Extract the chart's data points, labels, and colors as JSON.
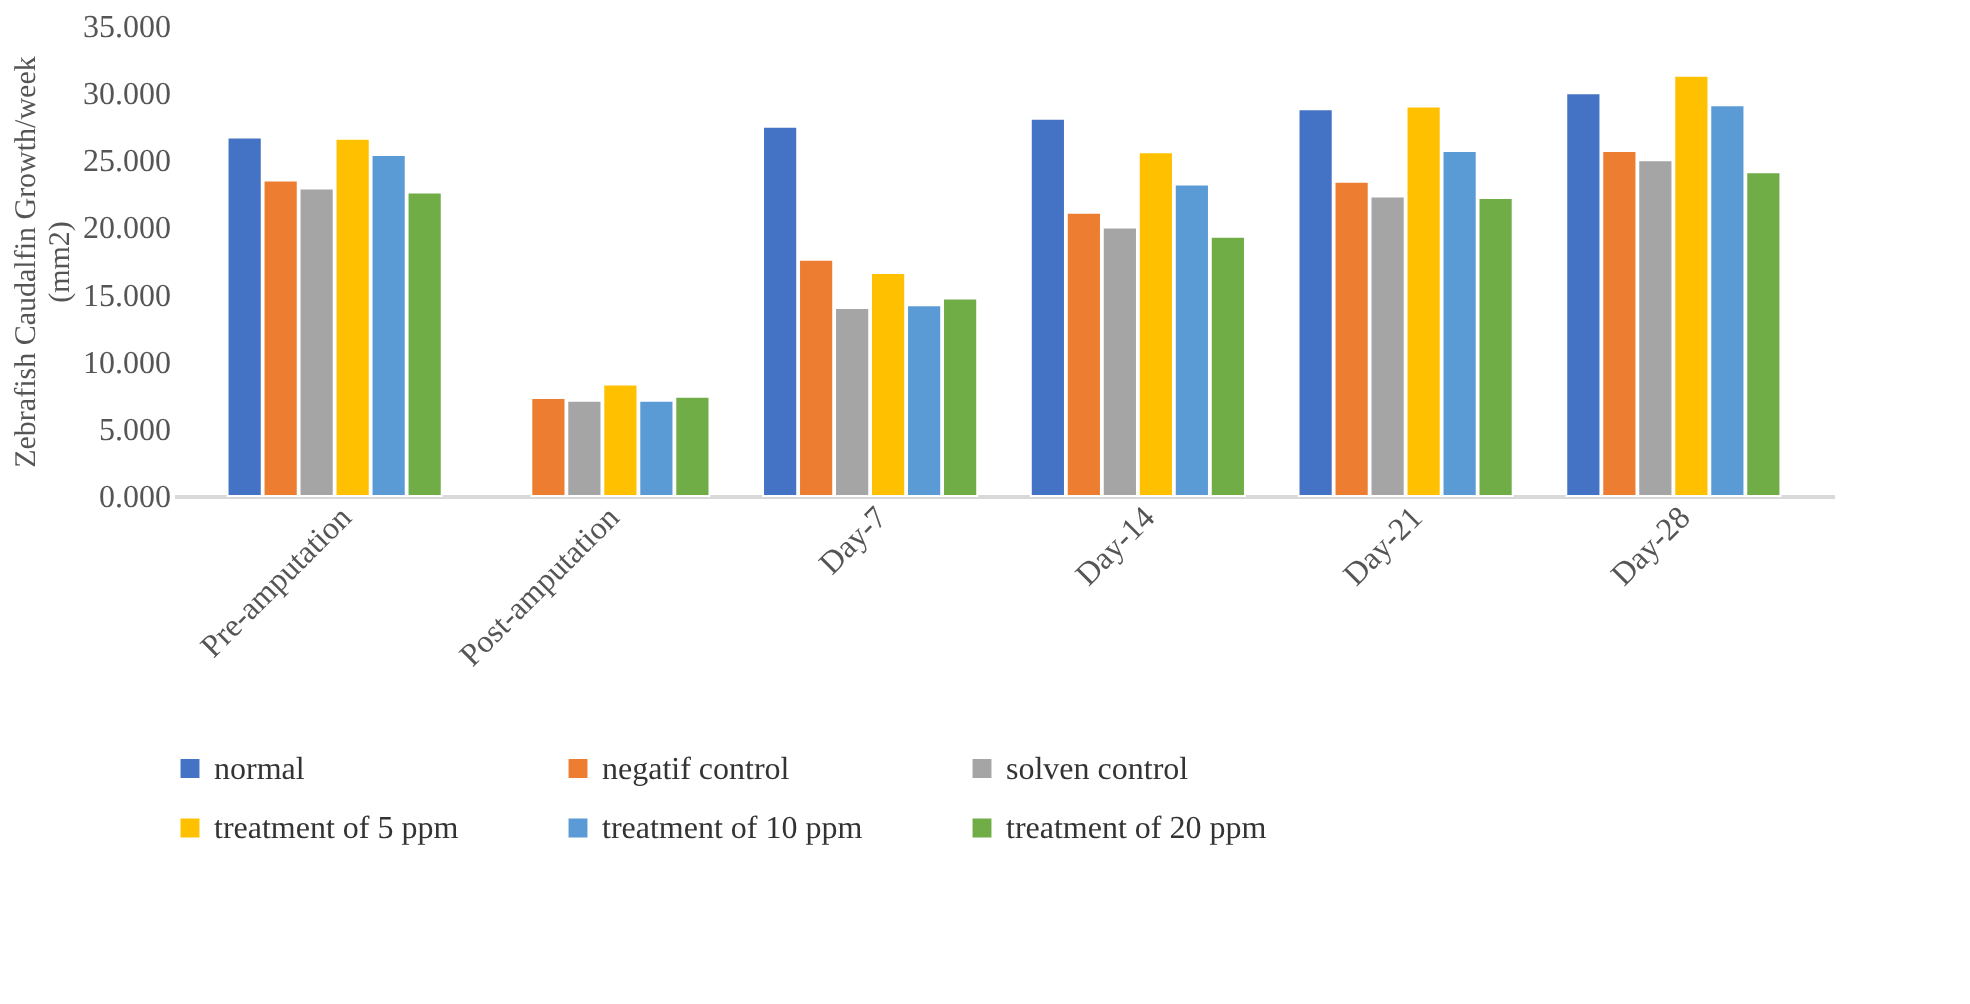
{
  "chart_data": {
    "type": "bar",
    "ylabel": "Zebrafish Caudalfin Growth/week (mm2)",
    "categories": [
      "Pre-amputation",
      "Post-amputation",
      "Day-7",
      "Day-14",
      "Day-21",
      "Day-28"
    ],
    "series": [
      {
        "name": "normal",
        "color": "#4472c4",
        "values": [
          26.7,
          null,
          27.5,
          28.1,
          28.8,
          30.0
        ]
      },
      {
        "name": "negatif control",
        "color": "#ed7d31",
        "values": [
          23.5,
          7.3,
          17.6,
          21.1,
          23.4,
          25.7
        ]
      },
      {
        "name": "solven control",
        "color": "#a5a5a5",
        "values": [
          22.9,
          7.1,
          14.0,
          20.0,
          22.3,
          25.0
        ]
      },
      {
        "name": "treatment of 5 ppm",
        "color": "#ffc000",
        "values": [
          26.6,
          8.3,
          16.6,
          25.6,
          29.0,
          31.3
        ]
      },
      {
        "name": "treatment of 10 ppm",
        "color": "#5b9bd5",
        "values": [
          25.4,
          7.1,
          14.2,
          23.2,
          25.7,
          29.1
        ]
      },
      {
        "name": "treatment of 20 ppm",
        "color": "#70ad47",
        "values": [
          22.6,
          7.4,
          14.7,
          19.3,
          22.2,
          24.1
        ]
      }
    ],
    "ylim": [
      0,
      35
    ],
    "yticks": [
      {
        "value": 0,
        "label": "0.000"
      },
      {
        "value": 5,
        "label": "5.000"
      },
      {
        "value": 10,
        "label": "10.000"
      },
      {
        "value": 15,
        "label": "15.000"
      },
      {
        "value": 20,
        "label": "20.000"
      },
      {
        "value": 25,
        "label": "25.000"
      },
      {
        "value": 30,
        "label": "30.000"
      },
      {
        "value": 35,
        "label": "35.000"
      }
    ],
    "grid": false,
    "legend": "bottom"
  }
}
